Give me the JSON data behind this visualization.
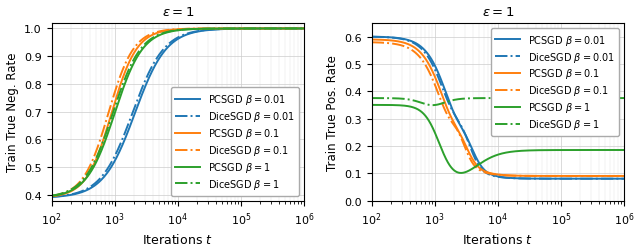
{
  "title": "$\\varepsilon = 1$",
  "left_ylabel": "Train True Neg. Rate",
  "right_ylabel": "Train True Pos. Rate",
  "xlabel": "Iterations $t$",
  "colors": {
    "blue": "#1f77b4",
    "orange": "#ff7f0e",
    "green": "#2ca02c"
  },
  "left_ylim": [
    0.38,
    1.02
  ],
  "right_ylim": [
    0.0,
    0.65
  ],
  "left_yticks": [
    0.4,
    0.5,
    0.6,
    0.7,
    0.8,
    0.9,
    1.0
  ],
  "right_yticks": [
    0.0,
    0.1,
    0.2,
    0.3,
    0.4,
    0.5,
    0.6
  ],
  "lw": 1.4,
  "legend_fontsize": 7
}
